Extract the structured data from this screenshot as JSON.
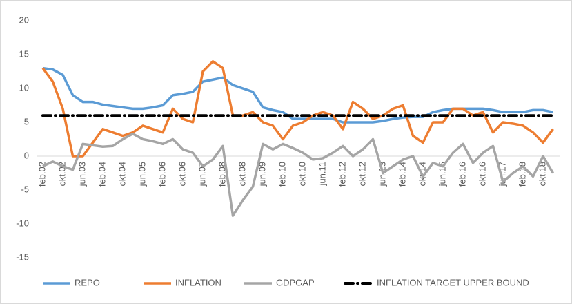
{
  "chart_data": {
    "type": "line",
    "categories": [
      "feb.02",
      null,
      "okt.02",
      null,
      "jun.03",
      null,
      "feb.04",
      null,
      "okt.04",
      null,
      "jun.05",
      null,
      "feb.06",
      null,
      "okt.06",
      null,
      "jun.07",
      null,
      "feb.08",
      null,
      "okt.08",
      null,
      "jun.09",
      null,
      "feb.10",
      null,
      "okt.10",
      null,
      "jun.11",
      null,
      "feb.12",
      null,
      "okt.12",
      null,
      "jun.13",
      null,
      "feb.14",
      null,
      "okt.14",
      null,
      "jun.15",
      null,
      "feb.16",
      null,
      "okt.16",
      null,
      "jun.17",
      null,
      "feb.18",
      null,
      "okt.18",
      null
    ],
    "series": [
      {
        "name": "REPO",
        "color": "#5b9bd5",
        "values": [
          13,
          12.8,
          12,
          9,
          8,
          8,
          7.6,
          7.4,
          7.2,
          7,
          7,
          7.2,
          7.5,
          9,
          9.2,
          9.5,
          11,
          11.3,
          11.6,
          10.5,
          10,
          9.5,
          7.2,
          6.8,
          6.5,
          5.5,
          5.5,
          5.5,
          5.5,
          5.5,
          5,
          5,
          5,
          5,
          5.2,
          5.5,
          5.7,
          5.8,
          5.8,
          6.5,
          6.8,
          7,
          7,
          7,
          7,
          6.8,
          6.5,
          6.5,
          6.5,
          6.8,
          6.8,
          6.5
        ]
      },
      {
        "name": "INFLATION",
        "color": "#ed7d31",
        "values": [
          13,
          11,
          7,
          0,
          0,
          2,
          4,
          3.5,
          3,
          3.5,
          4.5,
          4,
          3.5,
          7,
          5.5,
          5,
          12.5,
          14,
          13,
          6,
          6,
          6.5,
          5,
          4.5,
          2.5,
          4.5,
          5,
          6,
          6.5,
          6,
          4,
          8,
          7,
          5.5,
          6,
          7,
          7.5,
          3,
          2,
          5,
          5,
          7,
          7,
          6,
          6.5,
          3.5,
          5,
          4.8,
          4.5,
          3.5,
          2,
          4
        ]
      },
      {
        "name": "GDPGAP",
        "color": "#a5a5a5",
        "values": [
          -1.5,
          -0.8,
          -1.5,
          -2,
          1.8,
          1.6,
          1.4,
          1.5,
          2.5,
          3.3,
          2.5,
          2.2,
          1.8,
          2.5,
          1,
          0.5,
          -1.5,
          -0.5,
          1.5,
          -8.8,
          -6.5,
          -4.5,
          1.8,
          1,
          1.8,
          1.2,
          0.5,
          -0.5,
          -0.3,
          0.5,
          1.5,
          0,
          1,
          2.5,
          -2.5,
          -1.5,
          -0.5,
          0,
          -3,
          -1,
          -1.5,
          0.5,
          1.8,
          -1,
          0.5,
          1.5,
          -3.8,
          -2.5,
          -1.5,
          -3,
          0,
          -2.5
        ]
      },
      {
        "name": "INFLATION TARGET UPPER BOUND",
        "color": "#000000",
        "dash": true,
        "values": [
          6,
          6,
          6,
          6,
          6,
          6,
          6,
          6,
          6,
          6,
          6,
          6,
          6,
          6,
          6,
          6,
          6,
          6,
          6,
          6,
          6,
          6,
          6,
          6,
          6,
          6,
          6,
          6,
          6,
          6,
          6,
          6,
          6,
          6,
          6,
          6,
          6,
          6,
          6,
          6,
          6,
          6,
          6,
          6,
          6,
          6,
          6,
          6,
          6,
          6,
          6,
          6
        ]
      }
    ],
    "ylim": [
      -15,
      20
    ],
    "yticks": [
      -15,
      -10,
      -5,
      0,
      5,
      10,
      15,
      20
    ],
    "legend": "bottom"
  }
}
